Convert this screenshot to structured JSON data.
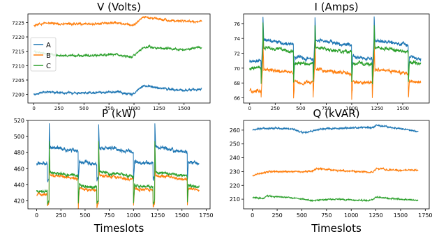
{
  "colors": {
    "A": "#1f77b4",
    "B": "#ff7f0e",
    "C": "#2ca02c"
  },
  "chart_data": [
    {
      "type": "line",
      "title": "V (Volts)",
      "xlabel": "",
      "xlim": [
        -60,
        1760
      ],
      "ylim": [
        7197,
        7228
      ],
      "xticks": [
        0,
        250,
        500,
        750,
        1000,
        1250,
        1500
      ],
      "yticks": [
        7200,
        7205,
        7210,
        7215,
        7220,
        7225
      ],
      "legend": {
        "position": "left",
        "entries": [
          "A",
          "B",
          "C"
        ]
      },
      "grid": false,
      "n_points": 1680,
      "series": [
        {
          "name": "A",
          "kind": "smooth",
          "base": [
            [
              0,
              7200.0
            ],
            [
              120,
              7201.0
            ],
            [
              300,
              7200.5
            ],
            [
              600,
              7200.5
            ],
            [
              800,
              7201.0
            ],
            [
              980,
              7200.0
            ],
            [
              1000,
              7200.3
            ],
            [
              1100,
              7203.0
            ],
            [
              1300,
              7202.0
            ],
            [
              1500,
              7201.5
            ],
            [
              1680,
              7202.0
            ]
          ],
          "noise": 0.4
        },
        {
          "name": "B",
          "kind": "smooth",
          "base": [
            [
              0,
              7224.0
            ],
            [
              120,
              7225.0
            ],
            [
              300,
              7224.5
            ],
            [
              600,
              7224.5
            ],
            [
              800,
              7225.0
            ],
            [
              980,
              7224.0
            ],
            [
              1000,
              7224.3
            ],
            [
              1100,
              7227.0
            ],
            [
              1300,
              7226.0
            ],
            [
              1500,
              7225.5
            ],
            [
              1680,
              7225.5
            ]
          ],
          "noise": 0.4
        },
        {
          "name": "C",
          "kind": "smooth",
          "base": [
            [
              0,
              7215.0
            ],
            [
              120,
              7214.0
            ],
            [
              300,
              7213.5
            ],
            [
              600,
              7213.5
            ],
            [
              800,
              7214.0
            ],
            [
              980,
              7213.0
            ],
            [
              1000,
              7213.5
            ],
            [
              1100,
              7216.5
            ],
            [
              1300,
              7216.0
            ],
            [
              1500,
              7215.5
            ],
            [
              1680,
              7216.5
            ]
          ],
          "noise": 0.4
        }
      ]
    },
    {
      "type": "line",
      "title": "I (Amps)",
      "xlabel": "",
      "xlim": [
        -60,
        1760
      ],
      "ylim": [
        65.3,
        77.3
      ],
      "xticks": [
        0,
        250,
        500,
        750,
        1000,
        1250,
        1500
      ],
      "yticks": [
        66,
        68,
        70,
        72,
        74,
        76
      ],
      "grid": false,
      "n_points": 1680,
      "series": [
        {
          "name": "A",
          "kind": "step",
          "preBase": 71.0,
          "onBase": 73.8,
          "decay": 71.2,
          "spike": 77.0,
          "dip": 69.0,
          "noise": 0.25
        },
        {
          "name": "B",
          "kind": "step",
          "preBase": 67.0,
          "onBase": 69.8,
          "decay": 68.0,
          "spike": 74.0,
          "dip": 66.0,
          "noise": 0.25
        },
        {
          "name": "C",
          "kind": "step",
          "preBase": 70.0,
          "onBase": 72.8,
          "decay": 70.5,
          "spike": 76.0,
          "dip": 68.0,
          "noise": 0.25
        }
      ]
    },
    {
      "type": "line",
      "title": "P (kW)",
      "xlabel": "Timeslots",
      "xlim": [
        -90,
        1790
      ],
      "ylim": [
        410,
        520
      ],
      "xticks": [
        0,
        250,
        500,
        750,
        1000,
        1250,
        1500,
        1750
      ],
      "yticks": [
        420,
        440,
        460,
        480,
        500,
        520
      ],
      "grid": false,
      "n_points": 1680,
      "series": [
        {
          "name": "A",
          "kind": "step",
          "preBase": 466.0,
          "onBase": 487.0,
          "decay": 466.0,
          "spike": 516.0,
          "dip": 445.0,
          "noise": 2.5
        },
        {
          "name": "B",
          "kind": "step",
          "preBase": 428.0,
          "onBase": 452.0,
          "decay": 433.0,
          "spike": 490.0,
          "dip": 412.0,
          "noise": 2.0
        },
        {
          "name": "C",
          "kind": "step",
          "preBase": 432.0,
          "onBase": 456.0,
          "decay": 437.0,
          "spike": 495.0,
          "dip": 416.0,
          "noise": 2.0
        }
      ]
    },
    {
      "type": "line",
      "title": "Q (kVAR)",
      "xlabel": "Timeslots",
      "xlim": [
        -90,
        1790
      ],
      "ylim": [
        203,
        267
      ],
      "xticks": [
        0,
        250,
        500,
        750,
        1000,
        1250,
        1500,
        1750
      ],
      "yticks": [
        210,
        220,
        230,
        240,
        250,
        260
      ],
      "grid": false,
      "n_points": 1680,
      "series": [
        {
          "name": "A",
          "kind": "smooth",
          "base": [
            [
              0,
              260.0
            ],
            [
              150,
              261.5
            ],
            [
              400,
              261.0
            ],
            [
              520,
              258.0
            ],
            [
              700,
              261.0
            ],
            [
              1000,
              261.5
            ],
            [
              1230,
              262.0
            ],
            [
              1250,
              263.5
            ],
            [
              1500,
              261.0
            ],
            [
              1680,
              259.0
            ]
          ],
          "noise": 0.6
        },
        {
          "name": "B",
          "kind": "smooth",
          "base": [
            [
              0,
              227.0
            ],
            [
              150,
              230.0
            ],
            [
              400,
              230.0
            ],
            [
              600,
              230.0
            ],
            [
              650,
              232.0
            ],
            [
              1000,
              230.0
            ],
            [
              1220,
              229.5
            ],
            [
              1250,
              232.0
            ],
            [
              1500,
              231.0
            ],
            [
              1680,
              231.0
            ]
          ],
          "noise": 0.6
        },
        {
          "name": "C",
          "kind": "smooth",
          "base": [
            [
              0,
              211.0
            ],
            [
              100,
              210.5
            ],
            [
              150,
              212.5
            ],
            [
              400,
              211.0
            ],
            [
              600,
              209.0
            ],
            [
              800,
              210.0
            ],
            [
              1000,
              209.5
            ],
            [
              1200,
              209.0
            ],
            [
              1250,
              211.5
            ],
            [
              1500,
              210.0
            ],
            [
              1680,
              209.0
            ]
          ],
          "noise": 0.5
        }
      ]
    }
  ]
}
